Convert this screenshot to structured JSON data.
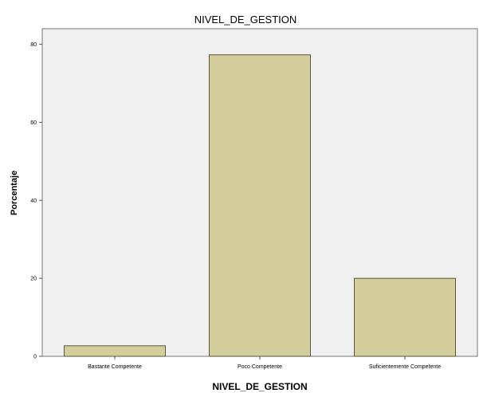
{
  "chart_data": {
    "type": "bar",
    "title": "NIVEL_DE_GESTION",
    "xlabel": "NIVEL_DE_GESTION",
    "ylabel": "Porcentaje",
    "categories": [
      "Bastante Competente",
      "Poco Competente",
      "Suficientemente Competente"
    ],
    "values": [
      2.7,
      77.3,
      20.0
    ],
    "ylim": [
      0,
      84
    ],
    "yticks": [
      0,
      20,
      40,
      60,
      80
    ],
    "grid": false,
    "colors": {
      "bar_fill": "#d3ce9c",
      "bar_stroke": "#55553a",
      "plot_bg": "#f0f0f0",
      "axis": "#555555"
    }
  }
}
